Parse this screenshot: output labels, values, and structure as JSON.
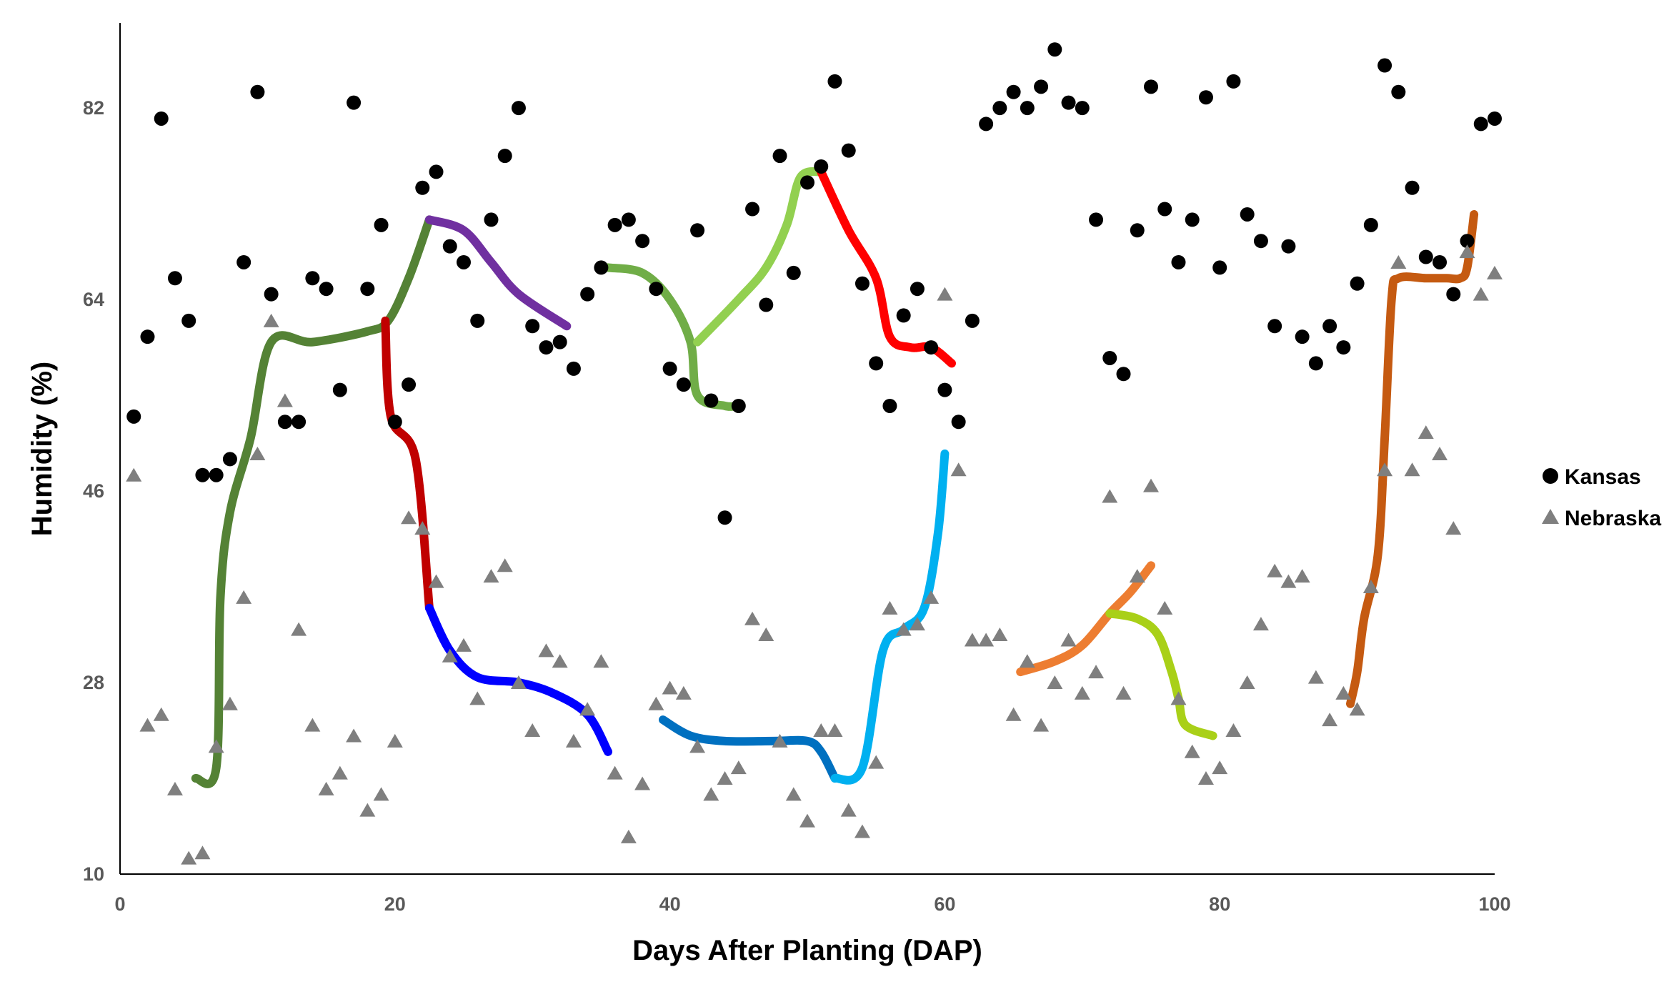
{
  "chart_data": {
    "type": "scatter",
    "title": "",
    "xlabel": "Days After Planting (DAP)",
    "ylabel": "Humidity (%)",
    "xlim": [
      0,
      100
    ],
    "ylim": [
      10,
      90
    ],
    "xticks": [
      0,
      20,
      40,
      60,
      80,
      100
    ],
    "yticks": [
      10,
      28,
      46,
      64,
      82
    ],
    "grid": false,
    "legend_position": "right",
    "series": [
      {
        "name": "Kansas",
        "marker": "circle",
        "color": "#000000",
        "points": [
          [
            1,
            53
          ],
          [
            2,
            60.5
          ],
          [
            3,
            81
          ],
          [
            4,
            66
          ],
          [
            5,
            62
          ],
          [
            6,
            47.5
          ],
          [
            7,
            47.5
          ],
          [
            8,
            49
          ],
          [
            9,
            67.5
          ],
          [
            10,
            83.5
          ],
          [
            11,
            64.5
          ],
          [
            12,
            52.5
          ],
          [
            13,
            52.5
          ],
          [
            14,
            66
          ],
          [
            15,
            65
          ],
          [
            16,
            55.5
          ],
          [
            17,
            82.5
          ],
          [
            18,
            65
          ],
          [
            19,
            71
          ],
          [
            20,
            52.5
          ],
          [
            21,
            56
          ],
          [
            22,
            74.5
          ],
          [
            23,
            76
          ],
          [
            24,
            69
          ],
          [
            25,
            67.5
          ],
          [
            26,
            62
          ],
          [
            27,
            71.5
          ],
          [
            28,
            77.5
          ],
          [
            29,
            82
          ],
          [
            30,
            61.5
          ],
          [
            31,
            59.5
          ],
          [
            32,
            60
          ],
          [
            33,
            57.5
          ],
          [
            34,
            64.5
          ],
          [
            35,
            67
          ],
          [
            36,
            71
          ],
          [
            37,
            71.5
          ],
          [
            38,
            69.5
          ],
          [
            39,
            65
          ],
          [
            40,
            57.5
          ],
          [
            41,
            56
          ],
          [
            42,
            70.5
          ],
          [
            43,
            54.5
          ],
          [
            44,
            43.5
          ],
          [
            45,
            54
          ],
          [
            46,
            72.5
          ],
          [
            47,
            63.5
          ],
          [
            48,
            77.5
          ],
          [
            49,
            66.5
          ],
          [
            50,
            75
          ],
          [
            51,
            76.5
          ],
          [
            52,
            84.5
          ],
          [
            53,
            78
          ],
          [
            54,
            65.5
          ],
          [
            55,
            58
          ],
          [
            56,
            54
          ],
          [
            57,
            62.5
          ],
          [
            58,
            65
          ],
          [
            59,
            59.5
          ],
          [
            60,
            55.5
          ],
          [
            61,
            52.5
          ],
          [
            62,
            62
          ],
          [
            63,
            80.5
          ],
          [
            64,
            82
          ],
          [
            65,
            83.5
          ],
          [
            66,
            82
          ],
          [
            67,
            84
          ],
          [
            68,
            87.5
          ],
          [
            69,
            82.5
          ],
          [
            70,
            82
          ],
          [
            71,
            71.5
          ],
          [
            72,
            58.5
          ],
          [
            73,
            57
          ],
          [
            74,
            70.5
          ],
          [
            75,
            84
          ],
          [
            76,
            72.5
          ],
          [
            77,
            67.5
          ],
          [
            78,
            71.5
          ],
          [
            79,
            83
          ],
          [
            80,
            67
          ],
          [
            81,
            84.5
          ],
          [
            82,
            72
          ],
          [
            83,
            69.5
          ],
          [
            84,
            61.5
          ],
          [
            85,
            69
          ],
          [
            86,
            60.5
          ],
          [
            87,
            58
          ],
          [
            88,
            61.5
          ],
          [
            89,
            59.5
          ],
          [
            90,
            65.5
          ],
          [
            91,
            71
          ],
          [
            92,
            86
          ],
          [
            93,
            83.5
          ],
          [
            94,
            74.5
          ],
          [
            95,
            68
          ],
          [
            96,
            67.5
          ],
          [
            97,
            64.5
          ],
          [
            98,
            69.5
          ],
          [
            99,
            80.5
          ],
          [
            100,
            81
          ]
        ]
      },
      {
        "name": "Nebraska",
        "marker": "triangle",
        "color": "#7f7f7f",
        "points": [
          [
            1,
            47.5
          ],
          [
            2,
            24
          ],
          [
            3,
            25
          ],
          [
            4,
            18
          ],
          [
            5,
            11.5
          ],
          [
            6,
            12
          ],
          [
            7,
            22
          ],
          [
            8,
            26
          ],
          [
            9,
            36
          ],
          [
            10,
            49.5
          ],
          [
            11,
            62
          ],
          [
            12,
            54.5
          ],
          [
            13,
            33
          ],
          [
            14,
            24
          ],
          [
            15,
            18
          ],
          [
            16,
            19.5
          ],
          [
            17,
            23
          ],
          [
            18,
            16
          ],
          [
            19,
            17.5
          ],
          [
            20,
            22.5
          ],
          [
            21,
            43.5
          ],
          [
            22,
            42.5
          ],
          [
            23,
            37.5
          ],
          [
            24,
            30.5
          ],
          [
            25,
            31.5
          ],
          [
            26,
            26.5
          ],
          [
            27,
            38
          ],
          [
            28,
            39
          ],
          [
            29,
            28
          ],
          [
            30,
            23.5
          ],
          [
            31,
            31
          ],
          [
            32,
            30
          ],
          [
            33,
            22.5
          ],
          [
            34,
            25.5
          ],
          [
            35,
            30
          ],
          [
            36,
            19.5
          ],
          [
            37,
            13.5
          ],
          [
            38,
            18.5
          ],
          [
            39,
            26
          ],
          [
            40,
            27.5
          ],
          [
            41,
            27
          ],
          [
            42,
            22
          ],
          [
            43,
            17.5
          ],
          [
            44,
            19
          ],
          [
            45,
            20
          ],
          [
            46,
            34
          ],
          [
            47,
            32.5
          ],
          [
            48,
            22.5
          ],
          [
            49,
            17.5
          ],
          [
            50,
            15
          ],
          [
            51,
            23.5
          ],
          [
            52,
            23.5
          ],
          [
            53,
            16
          ],
          [
            54,
            14
          ],
          [
            55,
            20.5
          ],
          [
            56,
            35
          ],
          [
            57,
            33
          ],
          [
            58,
            33.5
          ],
          [
            59,
            36
          ],
          [
            60,
            64.5
          ],
          [
            61,
            48
          ],
          [
            62,
            32
          ],
          [
            63,
            32
          ],
          [
            64,
            32.5
          ],
          [
            65,
            25
          ],
          [
            66,
            30
          ],
          [
            67,
            24
          ],
          [
            68,
            28
          ],
          [
            69,
            32
          ],
          [
            70,
            27
          ],
          [
            71,
            29
          ],
          [
            72,
            45.5
          ],
          [
            73,
            27
          ],
          [
            74,
            38
          ],
          [
            75,
            46.5
          ],
          [
            76,
            35
          ],
          [
            77,
            26.5
          ],
          [
            78,
            21.5
          ],
          [
            79,
            19
          ],
          [
            80,
            20
          ],
          [
            81,
            23.5
          ],
          [
            82,
            28
          ],
          [
            83,
            33.5
          ],
          [
            84,
            38.5
          ],
          [
            85,
            37.5
          ],
          [
            86,
            38
          ],
          [
            87,
            28.5
          ],
          [
            88,
            24.5
          ],
          [
            89,
            27
          ],
          [
            90,
            25.5
          ],
          [
            91,
            37
          ],
          [
            92,
            48
          ],
          [
            93,
            67.5
          ],
          [
            94,
            48
          ],
          [
            95,
            51.5
          ],
          [
            96,
            49.5
          ],
          [
            97,
            42.5
          ],
          [
            98,
            68.5
          ],
          [
            99,
            64.5
          ],
          [
            100,
            66.5
          ]
        ]
      }
    ],
    "curves": [
      {
        "color": "#548235",
        "points": [
          [
            5.5,
            19
          ],
          [
            7,
            20
          ],
          [
            7.3,
            36
          ],
          [
            8,
            44
          ],
          [
            9.5,
            51
          ],
          [
            11,
            60
          ],
          [
            14,
            60
          ],
          [
            18,
            61
          ],
          [
            19.5,
            62
          ],
          [
            21,
            66
          ],
          [
            22.5,
            71.5
          ]
        ]
      },
      {
        "color": "#7030a0",
        "points": [
          [
            22.5,
            71.5
          ],
          [
            25,
            70.5
          ],
          [
            27,
            67.5
          ],
          [
            29,
            64.5
          ],
          [
            32.5,
            61.5
          ]
        ]
      },
      {
        "color": "#c00000",
        "points": [
          [
            19.3,
            62
          ],
          [
            19.7,
            53
          ],
          [
            21.5,
            49
          ],
          [
            22.5,
            35
          ]
        ]
      },
      {
        "color": "#0000ff",
        "points": [
          [
            22.5,
            35
          ],
          [
            24,
            31
          ],
          [
            26,
            28.5
          ],
          [
            29,
            28
          ],
          [
            31.5,
            27
          ],
          [
            34,
            25
          ],
          [
            35.5,
            21.5
          ]
        ]
      },
      {
        "color": "#70ad47",
        "points": [
          [
            35.5,
            67
          ],
          [
            38,
            66.5
          ],
          [
            40,
            64
          ],
          [
            41.5,
            60
          ],
          [
            42,
            55
          ],
          [
            44,
            54
          ],
          [
            45,
            54
          ]
        ]
      },
      {
        "color": "#92d050",
        "points": [
          [
            42,
            60
          ],
          [
            45,
            64
          ],
          [
            47,
            67
          ],
          [
            48.5,
            71
          ],
          [
            49.5,
            75.5
          ],
          [
            51,
            76
          ]
        ]
      },
      {
        "color": "#ff0000",
        "points": [
          [
            51,
            76
          ],
          [
            53,
            70.5
          ],
          [
            55,
            66
          ],
          [
            56,
            60.5
          ],
          [
            57.5,
            59.5
          ],
          [
            59,
            59.5
          ],
          [
            60.5,
            58
          ]
        ]
      },
      {
        "color": "#0070c0",
        "points": [
          [
            39.5,
            24.5
          ],
          [
            41.5,
            23
          ],
          [
            44,
            22.5
          ],
          [
            47.5,
            22.5
          ],
          [
            50,
            22.5
          ],
          [
            51,
            21.5
          ],
          [
            52,
            19
          ]
        ]
      },
      {
        "color": "#00b0f0",
        "points": [
          [
            52,
            19
          ],
          [
            54,
            20
          ],
          [
            55.5,
            31
          ],
          [
            57,
            33
          ],
          [
            58.5,
            35
          ],
          [
            59.5,
            42
          ],
          [
            60,
            49.5
          ]
        ]
      },
      {
        "color": "#ed7d31",
        "points": [
          [
            65.5,
            29
          ],
          [
            68,
            30
          ],
          [
            70,
            31.5
          ],
          [
            72,
            34.5
          ],
          [
            73.5,
            36.5
          ],
          [
            75,
            39
          ]
        ]
      },
      {
        "color": "#a9d018",
        "points": [
          [
            72,
            34.5
          ],
          [
            74,
            34
          ],
          [
            75.5,
            32.5
          ],
          [
            76.5,
            29
          ],
          [
            77,
            26.5
          ],
          [
            77.5,
            24
          ],
          [
            79.5,
            23
          ]
        ]
      },
      {
        "color": "#c55a11",
        "points": [
          [
            89.5,
            26
          ],
          [
            90,
            29
          ],
          [
            90.5,
            34
          ],
          [
            91.5,
            40
          ],
          [
            92,
            51
          ],
          [
            92.5,
            64
          ],
          [
            93,
            66
          ],
          [
            95,
            66
          ],
          [
            96.5,
            66
          ],
          [
            97.5,
            66
          ],
          [
            98,
            67
          ],
          [
            98.5,
            72
          ]
        ]
      }
    ]
  }
}
